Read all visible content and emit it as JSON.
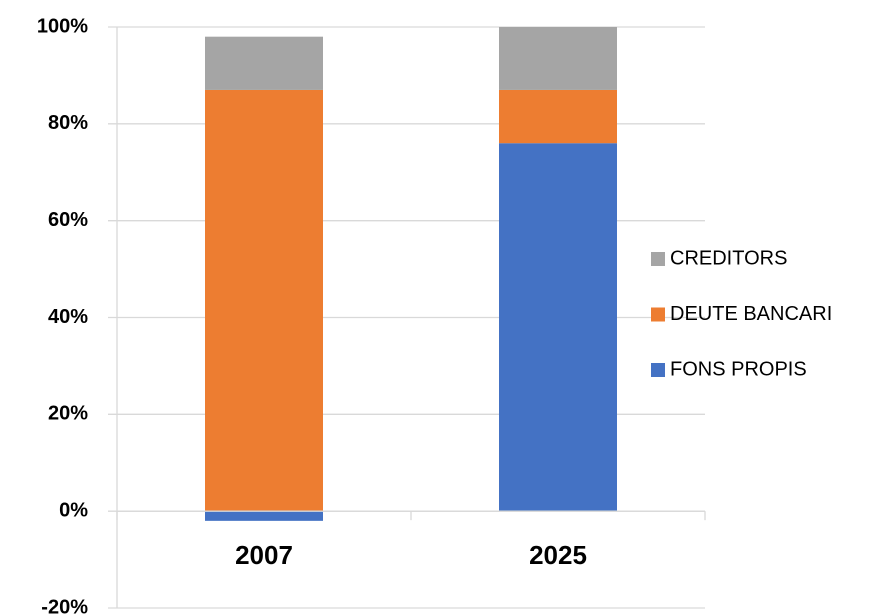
{
  "chart_data": {
    "type": "stacked_bar",
    "categories": [
      "2007",
      "2025"
    ],
    "series": [
      {
        "name": "FONS PROPIS",
        "color": "#4472c4",
        "values": [
          -2,
          76
        ]
      },
      {
        "name": "DEUTE BANCARI",
        "color": "#ed7d31",
        "values": [
          87,
          11
        ]
      },
      {
        "name": "CREDITORS",
        "color": "#a5a5a5",
        "values": [
          11,
          13
        ]
      }
    ],
    "ylim": [
      -20,
      100
    ],
    "yticks": [
      {
        "value": -20,
        "label": "-20%"
      },
      {
        "value": 0,
        "label": "0%"
      },
      {
        "value": 20,
        "label": "20%"
      },
      {
        "value": 40,
        "label": "40%"
      },
      {
        "value": 60,
        "label": "60%"
      },
      {
        "value": 80,
        "label": "80%"
      },
      {
        "value": 100,
        "label": "100%"
      }
    ],
    "grid": true,
    "legend": "right"
  }
}
